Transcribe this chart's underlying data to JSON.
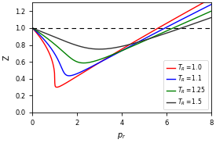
{
  "title": "",
  "xlabel": "$p_r$",
  "ylabel": "Z",
  "xlim": [
    0,
    8
  ],
  "ylim": [
    0.0,
    1.3
  ],
  "yticks": [
    0.0,
    0.2,
    0.4,
    0.6,
    0.8,
    1.0,
    1.2
  ],
  "xticks": [
    0,
    2,
    4,
    6,
    8
  ],
  "dashed_line_y": 1.0,
  "curves": [
    {
      "TR": 1.0,
      "color": "red",
      "label": "$T_R = 1.0$"
    },
    {
      "TR": 1.1,
      "color": "blue",
      "label": "$T_R = 1.1$"
    },
    {
      "TR": 1.25,
      "color": "green",
      "label": "$T_R = 1.25$"
    },
    {
      "TR": 1.5,
      "color": "#333333",
      "label": "$T_R = 1.5$"
    }
  ],
  "legend_loc": "lower right",
  "background_color": "#ffffff",
  "figsize": [
    2.75,
    1.83
  ],
  "dpi": 100,
  "tick_labelsize": 6,
  "axis_labelsize": 7,
  "legend_fontsize": 5.5,
  "linewidth": 1.0
}
